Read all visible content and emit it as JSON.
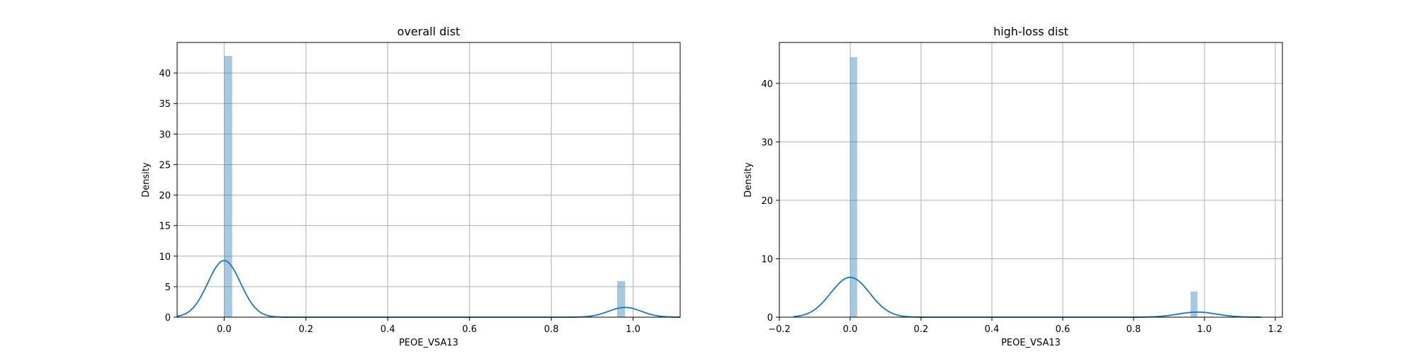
{
  "chart_data": [
    {
      "type": "histogram",
      "title": "overall dist",
      "xlabel": "PEOE_VSA13",
      "ylabel": "Density",
      "xlim": [
        -0.115,
        1.115
      ],
      "ylim": [
        0,
        45
      ],
      "xticks": [
        0.0,
        0.2,
        0.4,
        0.6,
        0.8,
        1.0
      ],
      "xtick_labels": [
        "0.0",
        "0.2",
        "0.4",
        "0.6",
        "0.8",
        "1.0"
      ],
      "yticks": [
        0,
        5,
        10,
        15,
        20,
        25,
        30,
        35,
        40
      ],
      "ytick_labels": [
        "0",
        "5",
        "10",
        "15",
        "20",
        "25",
        "30",
        "35",
        "40"
      ],
      "grid": true,
      "bars": [
        {
          "x0": 0.0,
          "x1": 0.0196,
          "value": 42.8
        },
        {
          "x0": 0.9608,
          "x1": 0.9804,
          "value": 5.9
        }
      ],
      "kde": {
        "x_range": [
          -0.115,
          1.115
        ],
        "components": [
          {
            "mean": 0.0,
            "sd": 0.04,
            "weight": 0.93
          },
          {
            "mean": 0.98,
            "sd": 0.04,
            "weight": 0.16
          }
        ]
      }
    },
    {
      "type": "histogram",
      "title": "high-loss dist",
      "xlabel": "PEOE_VSA13",
      "ylabel": "Density",
      "xlim": [
        -0.2,
        1.22
      ],
      "ylim": [
        0,
        47
      ],
      "xticks": [
        -0.2,
        0.0,
        0.2,
        0.4,
        0.6,
        0.8,
        1.0,
        1.2
      ],
      "xtick_labels": [
        "−0.2",
        "0.0",
        "0.2",
        "0.4",
        "0.6",
        "0.8",
        "1.0",
        "1.2"
      ],
      "yticks": [
        0,
        10,
        20,
        30,
        40
      ],
      "ytick_labels": [
        "0",
        "10",
        "20",
        "30",
        "40"
      ],
      "grid": true,
      "bars": [
        {
          "x0": 0.0,
          "x1": 0.0196,
          "value": 44.5
        },
        {
          "x0": 0.9608,
          "x1": 0.9804,
          "value": 4.4
        }
      ],
      "kde": {
        "x_range": [
          -0.16,
          1.16
        ],
        "components": [
          {
            "mean": 0.0,
            "sd": 0.055,
            "weight": 0.94
          },
          {
            "mean": 0.98,
            "sd": 0.055,
            "weight": 0.12
          }
        ]
      }
    }
  ]
}
